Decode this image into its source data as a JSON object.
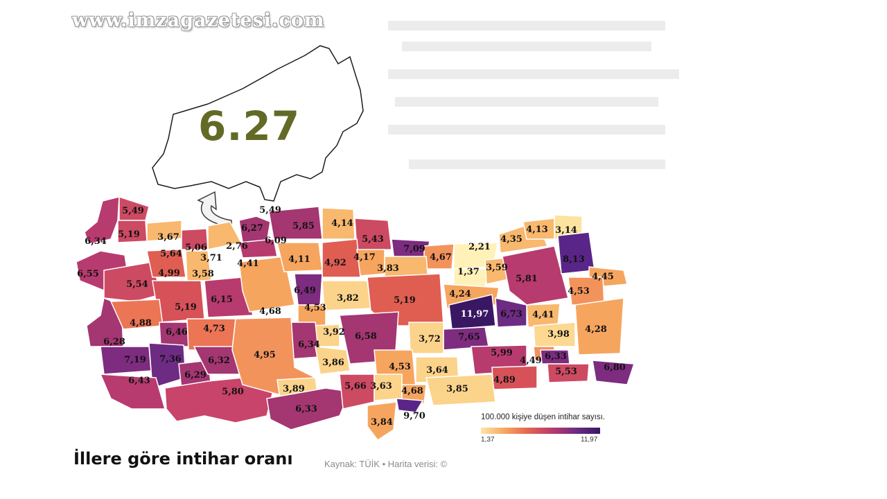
{
  "watermark": "www.imzagazetesi.com",
  "inset": {
    "value": "6.27"
  },
  "title": "İllere göre intihar oranı",
  "source": "Kaynak: TÜİK • Harita verisi: ©",
  "legend": {
    "title": "100.000 kişiye düşen intihar sayısı.",
    "min": "1,37",
    "max": "11,97",
    "colors": [
      "#fde6a3",
      "#f6a55f",
      "#e5634f",
      "#b73b6f",
      "#6d2b83",
      "#3a1763"
    ]
  },
  "provinces": [
    {
      "v": "5,49"
    },
    {
      "v": "5,19"
    },
    {
      "v": "6,34"
    },
    {
      "v": "3,67"
    },
    {
      "v": "5,64"
    },
    {
      "v": "5,06"
    },
    {
      "v": "2,76"
    },
    {
      "v": "5,49"
    },
    {
      "v": "6,27"
    },
    {
      "v": "6,09"
    },
    {
      "v": "5,85"
    },
    {
      "v": "4,14"
    },
    {
      "v": "5,43"
    },
    {
      "v": "7,09"
    },
    {
      "v": "4,67"
    },
    {
      "v": "2,21"
    },
    {
      "v": "4,35"
    },
    {
      "v": "4,13"
    },
    {
      "v": "3,14"
    },
    {
      "v": "3,71"
    },
    {
      "v": "4,41"
    },
    {
      "v": "4,11"
    },
    {
      "v": "4,92"
    },
    {
      "v": "4,17"
    },
    {
      "v": "3,83"
    },
    {
      "v": "1,37"
    },
    {
      "v": "3,59"
    },
    {
      "v": "5,81"
    },
    {
      "v": "8,13"
    },
    {
      "v": "4,45"
    },
    {
      "v": "6,55"
    },
    {
      "v": "4,99"
    },
    {
      "v": "3,58"
    },
    {
      "v": "5,54"
    },
    {
      "v": "6,49"
    },
    {
      "v": "4,68"
    },
    {
      "v": "6,15"
    },
    {
      "v": "4,53"
    },
    {
      "v": "3,82"
    },
    {
      "v": "5,19"
    },
    {
      "v": "4,24"
    },
    {
      "v": "4,53"
    },
    {
      "v": "5,19"
    },
    {
      "v": "11,97"
    },
    {
      "v": "6,73"
    },
    {
      "v": "4,41"
    },
    {
      "v": "4,28"
    },
    {
      "v": "4,88"
    },
    {
      "v": "6,46"
    },
    {
      "v": "4,73"
    },
    {
      "v": "6,28"
    },
    {
      "v": "3,92"
    },
    {
      "v": "6,58"
    },
    {
      "v": "7,65"
    },
    {
      "v": "3,98"
    },
    {
      "v": "6,34"
    },
    {
      "v": "3,72"
    },
    {
      "v": "7,19"
    },
    {
      "v": "7,36"
    },
    {
      "v": "6,32"
    },
    {
      "v": "4,95"
    },
    {
      "v": "3,86"
    },
    {
      "v": "5,99"
    },
    {
      "v": "6,33"
    },
    {
      "v": "4,49"
    },
    {
      "v": "6,43"
    },
    {
      "v": "6,29"
    },
    {
      "v": "4,53"
    },
    {
      "v": "3,64"
    },
    {
      "v": "5,53"
    },
    {
      "v": "6,80"
    },
    {
      "v": "4,89"
    },
    {
      "v": "5,80"
    },
    {
      "v": "3,89"
    },
    {
      "v": "5,66"
    },
    {
      "v": "3,63"
    },
    {
      "v": "3,85"
    },
    {
      "v": "6,33"
    },
    {
      "v": "4,68"
    },
    {
      "v": "9,70"
    },
    {
      "v": "3,84"
    }
  ]
}
